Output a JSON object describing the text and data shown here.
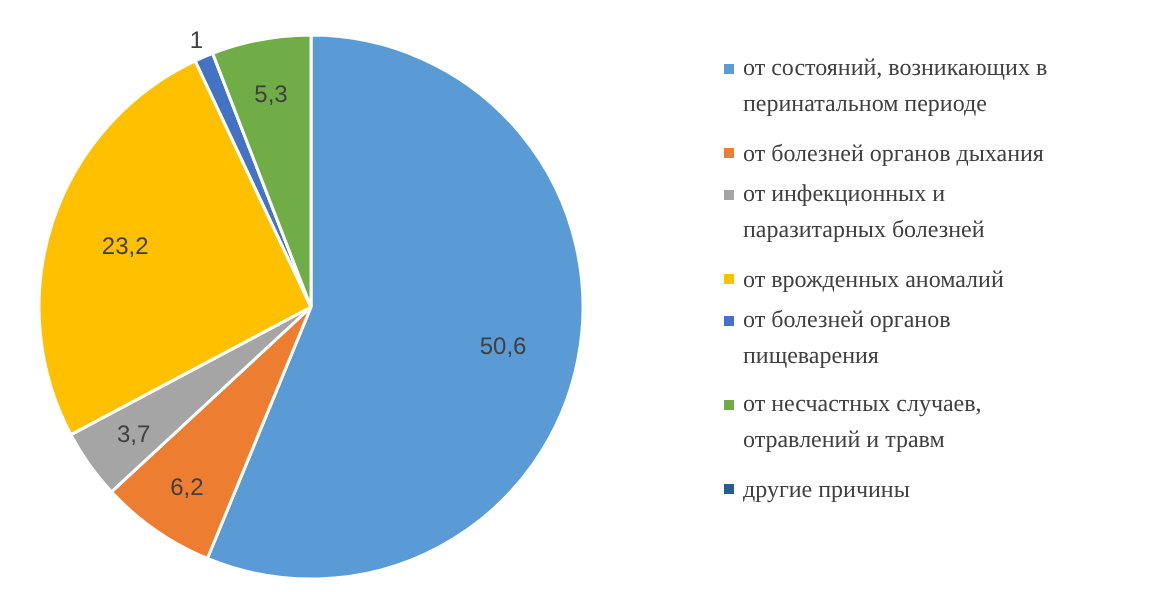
{
  "chart_data": {
    "type": "pie",
    "categories": [
      "от состояний, возникающих в перинатальном периоде",
      "от болезней органов дыхания",
      "от инфекционных и паразитарных болезней",
      "от врожденных аномалий",
      "от болезней органов пищеварения",
      "от несчастных случаев, отравлений и травм",
      "другие причины"
    ],
    "values": [
      50.6,
      6.2,
      3.7,
      23.2,
      1,
      5.3,
      null
    ],
    "value_labels": [
      "50,6",
      "6,2",
      "3,7",
      "23,2",
      "1",
      "5,3",
      null
    ],
    "colors": [
      "#5b9bd5",
      "#ed7d31",
      "#a5a5a5",
      "#ffc000",
      "#4472c4",
      "#70ad47",
      "#255e91"
    ],
    "legend": "right"
  }
}
